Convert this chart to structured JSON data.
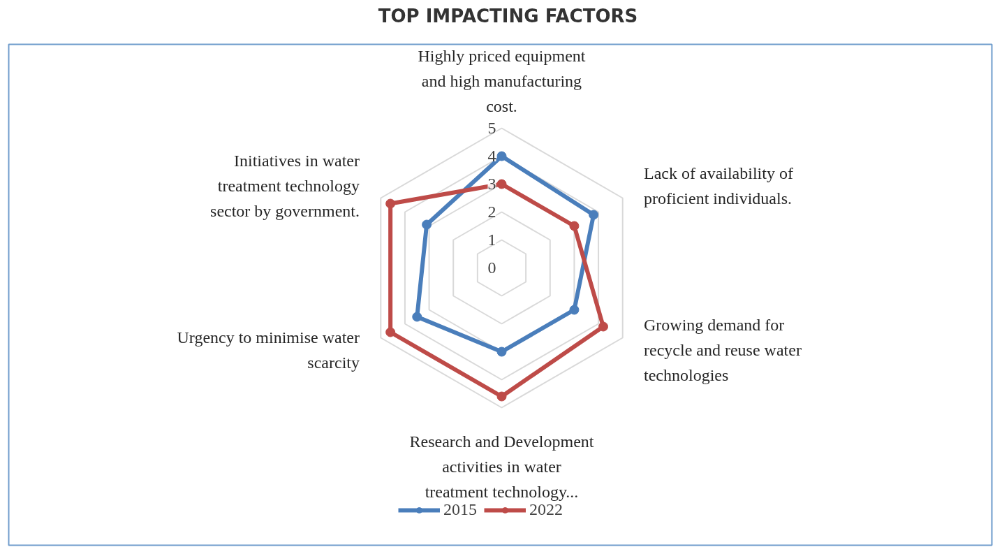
{
  "chart_data": {
    "type": "radar",
    "title": "TOP IMPACTING FACTORS",
    "categories": [
      "Highly priced equipment\nand high manufacturing\ncost.",
      "Lack of availability of\nproficient individuals.",
      "Growing demand for\nrecycle and reuse water\ntechnologies",
      "Research and Development\nactivities in water\ntreatment technology...",
      "Urgency to minimise water\nscarcity",
      "Initiatives in water\ntreatment technology\nsector by government."
    ],
    "series": [
      {
        "name": "2015",
        "color": "#4a7ebb",
        "values": [
          4,
          3.8,
          3,
          3,
          3.5,
          3.1
        ]
      },
      {
        "name": "2022",
        "color": "#be4b48",
        "values": [
          3,
          3,
          4.2,
          4.6,
          4.6,
          4.6
        ]
      }
    ],
    "ylim": [
      0,
      5
    ],
    "yticks": [
      0,
      1,
      2,
      3,
      4,
      5
    ],
    "grid": true,
    "legend": "bottom",
    "marker": "circle",
    "line_style": "solid"
  }
}
